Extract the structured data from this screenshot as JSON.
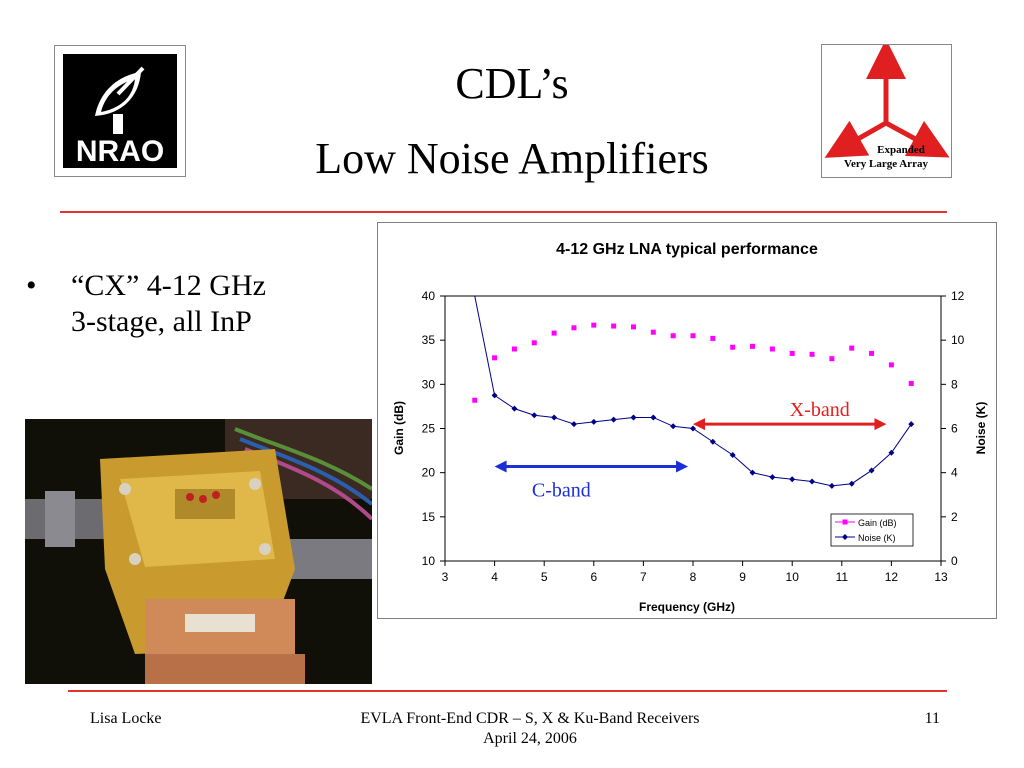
{
  "slide": {
    "title_line1": "CDL’s",
    "title_line2": "Low Noise Amplifiers",
    "bullet_line1": "“CX” 4-12 GHz",
    "bullet_line2": "3-stage, all InP",
    "nrao_logo_text": "NRAO",
    "evla_logo": {
      "line1": "Expanded",
      "line2": "Very Large Array",
      "arrow_color": "#e02020"
    },
    "accent_color": "#e8322f"
  },
  "footer": {
    "author": "Lisa Locke",
    "event": "EVLA Front-End CDR – S, X & Ku-Band Receivers",
    "date": "April 24, 2006",
    "page": "11"
  },
  "chart_data": {
    "type": "line",
    "title": "4-12 GHz LNA typical performance",
    "xlabel": "Frequency (GHz)",
    "ylabel": "Gain (dB)",
    "y2label": "Noise (K)",
    "xlim": [
      3,
      13
    ],
    "ylim": [
      10,
      40
    ],
    "y2lim": [
      0,
      12
    ],
    "x_ticks": [
      "3",
      "4",
      "5",
      "6",
      "7",
      "8",
      "9",
      "10",
      "11",
      "12",
      "13"
    ],
    "y_ticks": [
      "10",
      "15",
      "20",
      "25",
      "30",
      "35",
      "40"
    ],
    "y2_ticks": [
      "0",
      "2",
      "4",
      "6",
      "8",
      "10",
      "12"
    ],
    "grid": false,
    "legend_position": "bottom-right",
    "series": [
      {
        "name": "Gain (dB)",
        "axis": "left",
        "color": "#ff00ff",
        "marker": "square",
        "x": [
          3.6,
          4.0,
          4.4,
          4.8,
          5.2,
          5.6,
          6.0,
          6.4,
          6.8,
          7.2,
          7.6,
          8.0,
          8.4,
          8.8,
          9.2,
          9.6,
          10.0,
          10.4,
          10.8,
          11.2,
          11.6,
          12.0,
          12.4
        ],
        "y": [
          28.2,
          33.0,
          34.0,
          34.7,
          35.8,
          36.4,
          36.7,
          36.6,
          36.5,
          35.9,
          35.5,
          35.5,
          35.2,
          34.2,
          34.3,
          34.0,
          33.5,
          33.4,
          32.9,
          34.1,
          33.5,
          32.2,
          30.1
        ]
      },
      {
        "name": "Noise (K)",
        "axis": "right",
        "color": "#00008b",
        "marker": "diamond",
        "x": [
          3.6,
          4.0,
          4.4,
          4.8,
          5.2,
          5.6,
          6.0,
          6.4,
          6.8,
          7.2,
          7.6,
          8.0,
          8.4,
          8.8,
          9.2,
          9.6,
          10.0,
          10.4,
          10.8,
          11.2,
          11.6,
          12.0,
          12.4
        ],
        "y": [
          12.0,
          7.5,
          6.9,
          6.6,
          6.5,
          6.2,
          6.3,
          6.4,
          6.5,
          6.5,
          6.1,
          6.0,
          5.4,
          4.8,
          4.0,
          3.8,
          3.7,
          3.6,
          3.4,
          3.5,
          4.1,
          4.9,
          6.2
        ],
        "notes": "curve rises off-scale above 12 K near 3.6 GHz"
      }
    ],
    "annotations": [
      {
        "label": "X-band",
        "x_from": 8.0,
        "x_to": 11.9,
        "y": 25.5,
        "color": "#e02020"
      },
      {
        "label": "C-band",
        "x_from": 4.0,
        "x_to": 7.9,
        "y": 20.7,
        "color": "#1c2fd6"
      }
    ]
  }
}
